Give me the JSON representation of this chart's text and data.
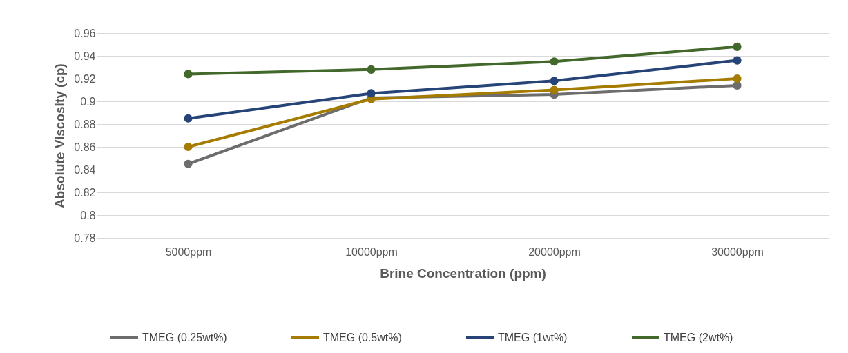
{
  "chart_data": {
    "type": "line",
    "xlabel": "Brine Concentration (ppm)",
    "ylabel": "Absolute Viscosity (cp)",
    "categories": [
      "5000ppm",
      "10000ppm",
      "20000ppm",
      "30000ppm"
    ],
    "series": [
      {
        "name": "TMEG (0.25wt%)",
        "color": "#6d6d6d",
        "values": [
          0.845,
          0.903,
          0.906,
          0.914
        ]
      },
      {
        "name": "TMEG (0.5wt%)",
        "color": "#a57c00",
        "values": [
          0.86,
          0.902,
          0.91,
          0.92
        ]
      },
      {
        "name": "TMEG (1wt%)",
        "color": "#264478",
        "values": [
          0.885,
          0.907,
          0.918,
          0.936
        ]
      },
      {
        "name": "TMEG (2wt%)",
        "color": "#43682b",
        "values": [
          0.924,
          0.928,
          0.935,
          0.948
        ]
      }
    ],
    "ylim": [
      0.78,
      0.96
    ],
    "yticks": [
      0.78,
      0.8,
      0.82,
      0.84,
      0.86,
      0.88,
      0.9,
      0.92,
      0.94,
      0.96
    ],
    "grid": true,
    "legend": "bottom",
    "marker": "circle",
    "line_style": "solid"
  }
}
